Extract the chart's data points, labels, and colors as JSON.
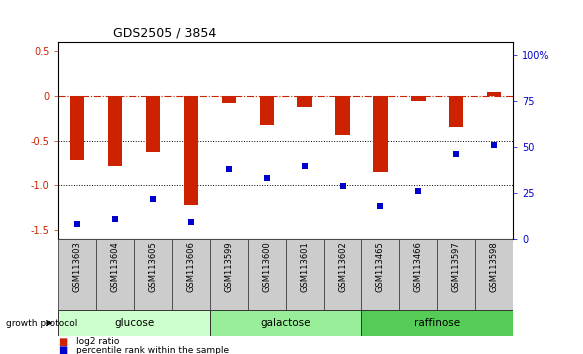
{
  "title": "GDS2505 / 3854",
  "samples": [
    "GSM113603",
    "GSM113604",
    "GSM113605",
    "GSM113606",
    "GSM113599",
    "GSM113600",
    "GSM113601",
    "GSM113602",
    "GSM113465",
    "GSM113466",
    "GSM113597",
    "GSM113598"
  ],
  "log2_ratio": [
    -0.72,
    -0.78,
    -0.63,
    -1.22,
    -0.08,
    -0.32,
    -0.12,
    -0.44,
    -0.85,
    -0.05,
    -0.35,
    0.05
  ],
  "percentile_rank": [
    8,
    11,
    22,
    9,
    38,
    33,
    40,
    29,
    18,
    26,
    46,
    51
  ],
  "groups": [
    {
      "label": "glucose",
      "start": 0,
      "end": 4,
      "color": "#ccffcc"
    },
    {
      "label": "galactose",
      "start": 4,
      "end": 8,
      "color": "#99ee99"
    },
    {
      "label": "raffinose",
      "start": 8,
      "end": 12,
      "color": "#55cc55"
    }
  ],
  "ylim_left": [
    -1.6,
    0.6
  ],
  "ylim_right": [
    0,
    107
  ],
  "yticks_left": [
    -1.5,
    -1.0,
    -0.5,
    0.0,
    0.5
  ],
  "yticks_right": [
    0,
    25,
    50,
    75,
    100
  ],
  "hline_color": "#cc2200",
  "bar_color": "#cc2200",
  "dot_color": "#0000cc",
  "bar_width": 0.38,
  "background_color": "#ffffff",
  "legend_items": [
    {
      "label": "log2 ratio",
      "color": "#cc2200"
    },
    {
      "label": "percentile rank within the sample",
      "color": "#0000cc"
    }
  ]
}
